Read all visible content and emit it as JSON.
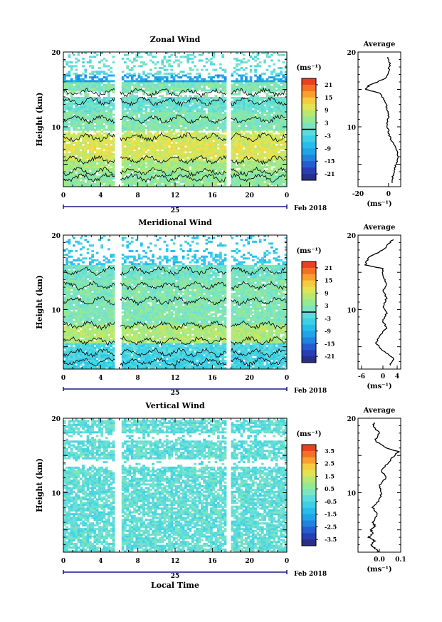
{
  "chart_data": [
    {
      "type": "heatmap",
      "title": "Zonal Wind",
      "ylabel": "Height (km)",
      "ylim": [
        2,
        20
      ],
      "yticks": [
        "10",
        "20"
      ],
      "xticks": [
        "0",
        "4",
        "8",
        "12",
        "16",
        "20",
        "0"
      ],
      "xlim": [
        0,
        24
      ],
      "date_day": "25",
      "date_month": "Feb 2018",
      "data_gaps_hours": [
        [
          5.6,
          6.1
        ],
        [
          17.6,
          18.0
        ]
      ],
      "colorbar": {
        "unit": "(ms⁻¹)",
        "ticks": [
          "21",
          "15",
          "9",
          "3",
          "-3",
          "-9",
          "-15",
          "-21"
        ],
        "zero_line": 0,
        "range": [
          -24,
          24
        ]
      },
      "profile": {
        "title": "Average",
        "xticks": [
          "-20",
          "0"
        ],
        "xlim": [
          -20,
          8
        ],
        "xlabel": "(ms⁻¹)",
        "heights": [
          2.5,
          3.5,
          4.5,
          5.5,
          6.5,
          7.5,
          8.5,
          9.5,
          10.5,
          11.5,
          12.5,
          13.5,
          14.5,
          15.0,
          15.5,
          16.5,
          17.5,
          18.5,
          19.5
        ],
        "values": [
          2,
          3,
          4,
          6,
          6,
          4,
          1,
          0,
          -1,
          0,
          -1,
          -2,
          -6,
          -15,
          -13,
          -2,
          0,
          1,
          -1
        ]
      }
    },
    {
      "type": "heatmap",
      "title": "Meridional Wind",
      "ylabel": "Height (km)",
      "ylim": [
        2,
        20
      ],
      "yticks": [
        "10",
        "20"
      ],
      "xticks": [
        "0",
        "4",
        "8",
        "12",
        "16",
        "20",
        "0"
      ],
      "xlim": [
        0,
        24
      ],
      "date_day": "25",
      "date_month": "Feb 2018",
      "data_gaps_hours": [
        [
          5.6,
          6.1
        ],
        [
          17.6,
          18.0
        ]
      ],
      "colorbar": {
        "unit": "(ms⁻¹)",
        "ticks": [
          "21",
          "15",
          "9",
          "3",
          "-3",
          "-9",
          "-15",
          "-21"
        ],
        "zero_line": 0,
        "range": [
          -24,
          24
        ]
      },
      "profile": {
        "title": "Average",
        "xticks": [
          "-6",
          "0",
          "4"
        ],
        "xlim": [
          -7,
          5
        ],
        "xlabel": "(ms⁻¹)",
        "heights": [
          2.5,
          3.5,
          4.5,
          5.5,
          6.5,
          7.5,
          8.5,
          9.5,
          10.5,
          11.5,
          12.5,
          13.5,
          14.5,
          15.5,
          16.0,
          17.0,
          18.0,
          19.0,
          19.5
        ],
        "values": [
          2,
          3,
          0,
          -2,
          -1,
          1,
          0,
          1,
          0,
          1,
          0,
          1,
          0,
          0,
          -5,
          -4,
          0,
          2,
          3
        ]
      }
    },
    {
      "type": "heatmap",
      "title": "Vertical Wind",
      "ylabel": "Height (km)",
      "ylim": [
        2,
        20
      ],
      "yticks": [
        "10",
        "20"
      ],
      "xticks": [
        "0",
        "4",
        "8",
        "12",
        "16",
        "20",
        "0"
      ],
      "xlim": [
        0,
        24
      ],
      "date_day": "25",
      "date_month": "Feb 2018",
      "xlabel": "Local Time",
      "data_gaps_hours": [
        [
          5.6,
          6.1
        ],
        [
          17.6,
          18.0
        ]
      ],
      "colorbar": {
        "unit": "(ms⁻¹)",
        "ticks": [
          "3.5",
          "2.5",
          "1.5",
          "0.5",
          "-0.5",
          "-1.5",
          "-2.5",
          "-3.5"
        ],
        "range": [
          -4,
          4
        ]
      },
      "profile": {
        "title": "Average",
        "xticks": [
          "0.0",
          "0.1"
        ],
        "xlim": [
          -0.1,
          0.1
        ],
        "xlabel": "(ms⁻¹)",
        "heights": [
          2.0,
          2.5,
          3.0,
          3.5,
          4.0,
          4.5,
          5.0,
          5.5,
          6.0,
          7.0,
          8.0,
          9.0,
          10.0,
          11.0,
          12.0,
          13.0,
          14.0,
          15.0,
          15.5,
          16.0,
          17.0,
          18.0,
          19.0,
          19.5
        ],
        "values": [
          0.0,
          -0.02,
          -0.04,
          -0.02,
          -0.05,
          -0.03,
          -0.04,
          -0.02,
          -0.03,
          -0.01,
          -0.03,
          0.0,
          0.01,
          0.0,
          0.03,
          0.01,
          0.04,
          0.07,
          0.09,
          0.03,
          -0.02,
          0.0,
          -0.03,
          -0.02
        ]
      }
    }
  ]
}
